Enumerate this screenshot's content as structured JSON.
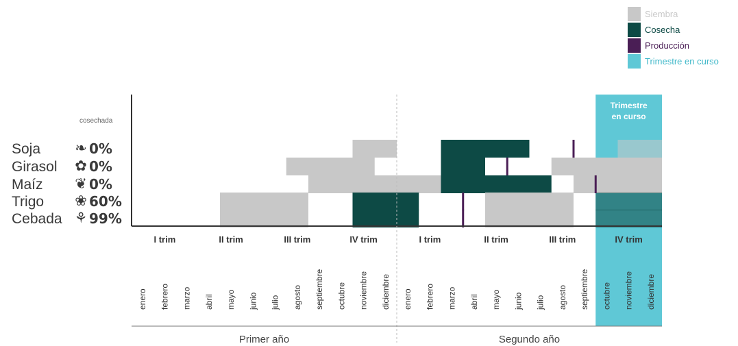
{
  "chart_data": {
    "type": "gantt",
    "cosechada_label": "cosechada",
    "legend": [
      {
        "key": "siembra",
        "label": "Siembra",
        "color": "#c8c8c8",
        "text_color": "#c8c8c8"
      },
      {
        "key": "cosecha",
        "label": "Cosecha",
        "color": "#0d4a45",
        "text_color": "#0d4a45"
      },
      {
        "key": "produccion",
        "label": "Producción",
        "color": "#4a1e55",
        "text_color": "#4a1e55"
      },
      {
        "key": "trimestre",
        "label": "Trimestre en curso",
        "color": "#5fc8d6",
        "text_color": "#3fb8c9"
      }
    ],
    "highlight": {
      "title_lines": [
        "Trimestre",
        "en curso"
      ],
      "start_month": 21,
      "end_month": 24
    },
    "crops": [
      {
        "name": "Soja",
        "icon": "soy-leaf-icon",
        "pct": "0%"
      },
      {
        "name": "Girasol",
        "icon": "sunflower-icon",
        "pct": "0%"
      },
      {
        "name": "Maíz",
        "icon": "corn-icon",
        "pct": "0%"
      },
      {
        "name": "Trigo",
        "icon": "wheat-icon",
        "pct": "60%"
      },
      {
        "name": "Cebada",
        "icon": "barley-icon",
        "pct": "99%"
      }
    ],
    "bars": [
      {
        "crop": "Soja",
        "type": "siembra",
        "start": 10,
        "end": 12
      },
      {
        "crop": "Soja",
        "type": "cosecha",
        "start": 14,
        "end": 18
      },
      {
        "crop": "Soja",
        "type": "siembra",
        "start": 22,
        "end": 24
      },
      {
        "crop": "Girasol",
        "type": "siembra",
        "start": 7,
        "end": 11
      },
      {
        "crop": "Girasol",
        "type": "cosecha",
        "start": 14,
        "end": 16
      },
      {
        "crop": "Girasol",
        "type": "siembra",
        "start": 19,
        "end": 24
      },
      {
        "crop": "Maíz",
        "type": "siembra",
        "start": 8,
        "end": 14
      },
      {
        "crop": "Maíz",
        "type": "cosecha",
        "start": 14,
        "end": 19
      },
      {
        "crop": "Maíz",
        "type": "siembra",
        "start": 20,
        "end": 24
      },
      {
        "crop": "Trigo",
        "type": "siembra",
        "start": 4,
        "end": 8
      },
      {
        "crop": "Trigo",
        "type": "cosecha",
        "start": 10,
        "end": 13
      },
      {
        "crop": "Trigo",
        "type": "siembra",
        "start": 16,
        "end": 20
      },
      {
        "crop": "Trigo",
        "type": "cosecha",
        "start": 21,
        "end": 24
      },
      {
        "crop": "Cebada",
        "type": "siembra",
        "start": 4,
        "end": 8
      },
      {
        "crop": "Cebada",
        "type": "cosecha",
        "start": 10,
        "end": 13
      },
      {
        "crop": "Cebada",
        "type": "siembra",
        "start": 16,
        "end": 20
      },
      {
        "crop": "Cebada",
        "type": "cosecha",
        "start": 21,
        "end": 24
      }
    ],
    "production_marks": [
      {
        "crop": "Soja",
        "month": 20
      },
      {
        "crop": "Girasol",
        "month": 17
      },
      {
        "crop": "Maíz",
        "month": 21
      },
      {
        "crop": "Trigo",
        "month": 15
      },
      {
        "crop": "Cebada",
        "month": 15
      }
    ],
    "trimesters": [
      "I trim",
      "II trim",
      "III trim",
      "IV trim",
      "I trim",
      "II trim",
      "III trim",
      "IV trim"
    ],
    "months": [
      "enero",
      "febrero",
      "marzo",
      "abril",
      "mayo",
      "junio",
      "julio",
      "agosto",
      "septiembre",
      "octubre",
      "noviembre",
      "diciembre",
      "enero",
      "febrero",
      "marzo",
      "abril",
      "mayo",
      "junio",
      "julio",
      "agosto",
      "septiembre",
      "octubre",
      "noviembre",
      "diciembre"
    ],
    "years": [
      "Primer año",
      "Segundo año"
    ]
  }
}
